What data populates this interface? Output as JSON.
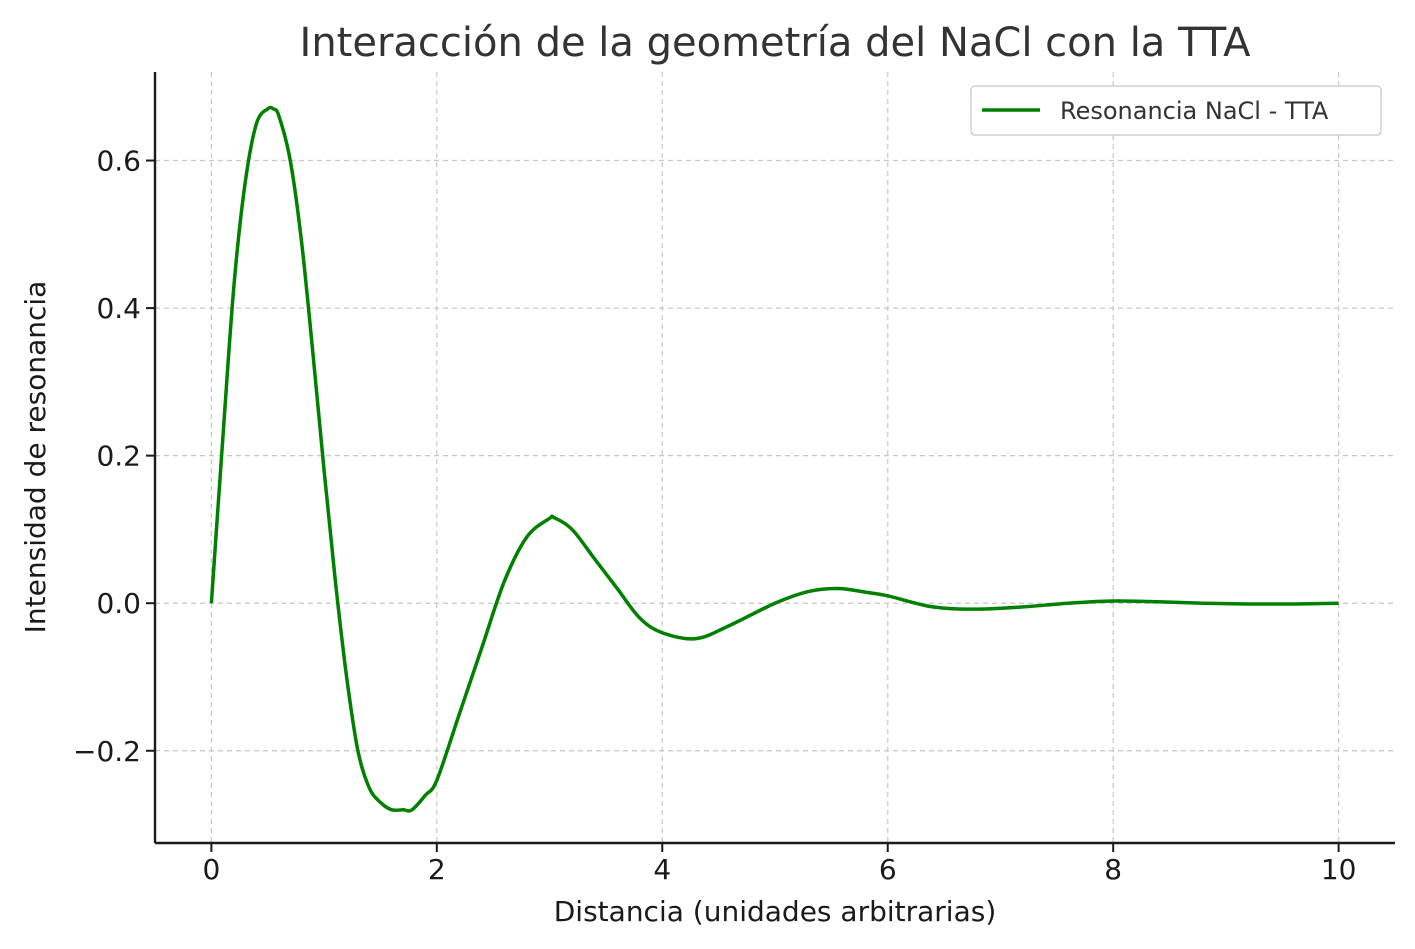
{
  "chart_data": {
    "type": "line",
    "title": "Interacción de la geometría del NaCl con la TTA",
    "xlabel": "Distancia (unidades arbitrarias)",
    "ylabel": "Intensidad de resonancia",
    "xlim": [
      -0.5,
      10.5
    ],
    "ylim": [
      -0.325,
      0.72
    ],
    "x_ticks": [
      0,
      2,
      4,
      6,
      8,
      10
    ],
    "x_tick_labels": [
      "0",
      "2",
      "4",
      "6",
      "8",
      "10"
    ],
    "y_ticks": [
      -0.2,
      0.0,
      0.2,
      0.4,
      0.6
    ],
    "y_tick_labels": [
      "−0.2",
      "0.0",
      "0.2",
      "0.4",
      "0.6"
    ],
    "grid": true,
    "legend": {
      "placement": "top-right",
      "entries": [
        "Resonancia NaCl - TTA"
      ]
    },
    "series": [
      {
        "name": "Resonancia NaCl - TTA",
        "color": "#008000",
        "x": [
          0,
          0.1,
          0.2,
          0.3,
          0.4,
          0.5,
          0.55,
          0.6,
          0.7,
          0.8,
          0.9,
          1.0,
          1.1,
          1.2,
          1.3,
          1.4,
          1.5,
          1.6,
          1.7,
          1.78,
          1.9,
          2.0,
          2.2,
          2.4,
          2.6,
          2.8,
          3.0,
          3.04,
          3.2,
          3.4,
          3.6,
          3.8,
          4.0,
          4.3,
          4.6,
          5.0,
          5.3,
          5.56,
          5.8,
          6.0,
          6.4,
          6.8,
          7.2,
          7.6,
          8.0,
          8.4,
          8.8,
          9.2,
          9.6,
          10.0
        ],
        "y": [
          0.0,
          0.22,
          0.43,
          0.57,
          0.65,
          0.67,
          0.67,
          0.66,
          0.6,
          0.49,
          0.34,
          0.18,
          0.03,
          -0.1,
          -0.2,
          -0.25,
          -0.27,
          -0.28,
          -0.28,
          -0.28,
          -0.26,
          -0.24,
          -0.15,
          -0.06,
          0.03,
          0.09,
          0.115,
          0.116,
          0.1,
          0.06,
          0.02,
          -0.02,
          -0.04,
          -0.048,
          -0.03,
          0.0,
          0.016,
          0.02,
          0.015,
          0.01,
          -0.005,
          -0.008,
          -0.005,
          0.0,
          0.003,
          0.002,
          0.0,
          -0.001,
          -0.001,
          0.0
        ]
      }
    ]
  }
}
